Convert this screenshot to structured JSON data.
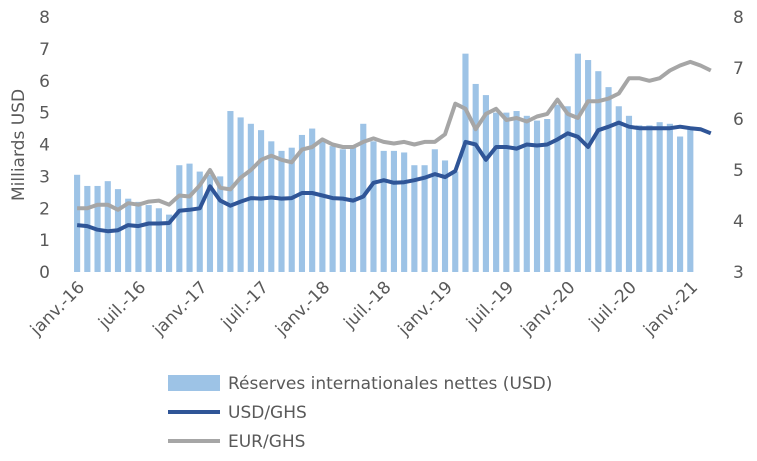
{
  "chart_data": {
    "type": "bar",
    "ylabel": "Milliards USD",
    "categories": [
      "janv.-16",
      null,
      null,
      null,
      null,
      null,
      "juil.-16",
      null,
      null,
      null,
      null,
      null,
      "janv.-17",
      null,
      null,
      null,
      null,
      null,
      "juil.-17",
      null,
      null,
      null,
      null,
      null,
      "janv.-18",
      null,
      null,
      null,
      null,
      null,
      "juil.-18",
      null,
      null,
      null,
      null,
      null,
      "janv.-19",
      null,
      null,
      null,
      null,
      null,
      "juil.-19",
      null,
      null,
      null,
      null,
      null,
      "janv.-20",
      null,
      null,
      null,
      null,
      null,
      "juil.-20",
      null,
      null,
      null,
      null,
      null,
      "janv.-21",
      null,
      null
    ],
    "ylim": [
      0,
      8
    ],
    "yticks": [
      0,
      1,
      2,
      3,
      4,
      5,
      6,
      7,
      8
    ],
    "y2lim": [
      3,
      8
    ],
    "y2ticks": [
      3,
      4,
      5,
      6,
      7,
      8
    ],
    "series": [
      {
        "name": "Réserves internationales nettes (USD)",
        "type": "bar",
        "color": "#9dc3e6",
        "values": [
          3.05,
          2.7,
          2.7,
          2.85,
          2.6,
          2.3,
          2.2,
          2.1,
          2.0,
          1.8,
          3.35,
          3.4,
          3.15,
          3.05,
          3.0,
          5.05,
          4.85,
          4.65,
          4.45,
          4.1,
          3.8,
          3.9,
          4.3,
          4.5,
          4.1,
          3.95,
          3.85,
          3.9,
          4.65,
          4.1,
          3.8,
          3.8,
          3.75,
          3.35,
          3.35,
          3.85,
          3.5,
          3.15,
          6.85,
          5.9,
          5.55,
          5.0,
          5.0,
          5.05,
          4.9,
          4.75,
          4.8,
          5.25,
          5.2,
          6.85,
          6.65,
          6.3,
          5.8,
          5.2,
          4.9,
          4.6,
          4.6,
          4.7,
          4.65,
          4.25,
          4.5,
          null,
          null
        ]
      },
      {
        "name": "USD/GHS",
        "type": "line",
        "axis": "y2",
        "color": "#2f5597",
        "values": [
          3.92,
          3.9,
          3.83,
          3.8,
          3.82,
          3.92,
          3.9,
          3.95,
          3.95,
          3.96,
          4.2,
          4.22,
          4.25,
          4.68,
          4.4,
          4.3,
          4.38,
          4.45,
          4.44,
          4.46,
          4.44,
          4.45,
          4.55,
          4.55,
          4.5,
          4.45,
          4.44,
          4.4,
          4.48,
          4.75,
          4.8,
          4.75,
          4.76,
          4.8,
          4.85,
          4.92,
          4.86,
          4.98,
          5.55,
          5.5,
          5.2,
          5.45,
          5.45,
          5.42,
          5.5,
          5.48,
          5.5,
          5.6,
          5.72,
          5.65,
          5.45,
          5.78,
          5.85,
          5.93,
          5.85,
          5.82,
          5.82,
          5.82,
          5.82,
          5.85,
          5.82,
          5.8,
          5.72
        ]
      },
      {
        "name": "EUR/GHS",
        "type": "line",
        "axis": "y2",
        "color": "#a6a6a6",
        "values": [
          4.25,
          4.25,
          4.32,
          4.32,
          4.22,
          4.35,
          4.32,
          4.38,
          4.4,
          4.32,
          4.5,
          4.48,
          4.7,
          5.0,
          4.65,
          4.62,
          4.85,
          5.0,
          5.2,
          5.28,
          5.2,
          5.15,
          5.4,
          5.45,
          5.6,
          5.5,
          5.45,
          5.45,
          5.55,
          5.62,
          5.55,
          5.52,
          5.55,
          5.5,
          5.55,
          5.55,
          5.7,
          6.3,
          6.2,
          5.8,
          6.1,
          6.2,
          5.98,
          6.02,
          5.95,
          6.05,
          6.1,
          6.38,
          6.1,
          6.02,
          6.35,
          6.35,
          6.4,
          6.5,
          6.8,
          6.8,
          6.75,
          6.8,
          6.95,
          7.05,
          7.12,
          7.05,
          6.95
        ]
      }
    ]
  }
}
